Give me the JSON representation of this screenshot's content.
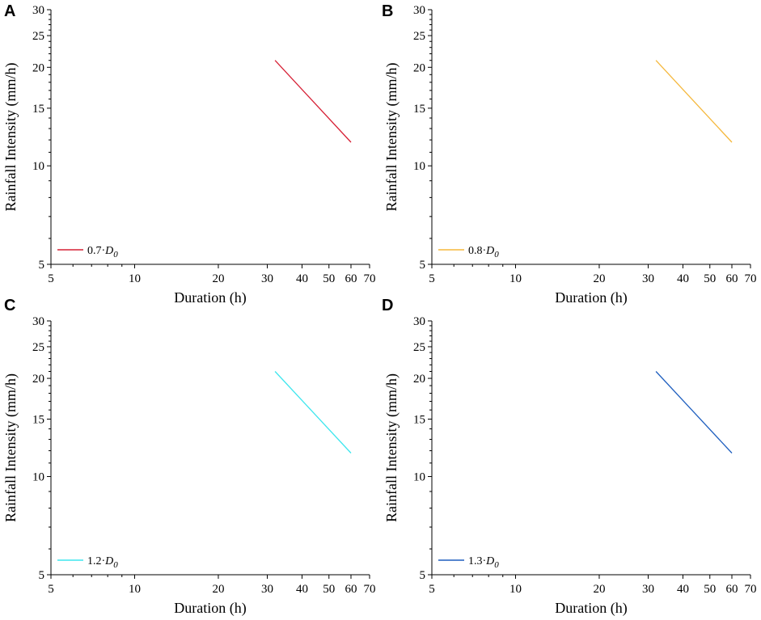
{
  "chart_data": [
    {
      "panel": "A",
      "type": "line",
      "scale": "log-log",
      "xlabel": "Duration (h)",
      "ylabel": "Rainfall Intensity (mm/h)",
      "xlim": [
        5,
        70
      ],
      "ylim": [
        5,
        30
      ],
      "xticks": [
        5,
        10,
        20,
        30,
        40,
        50,
        60,
        70
      ],
      "yticks": [
        5,
        10,
        15,
        20,
        25,
        30
      ],
      "legend_position": "bottom-left",
      "series": [
        {
          "name": "0.7·D",
          "name_base": "0.7·",
          "name_var": "D",
          "name_sub": "0",
          "color": "#d62035",
          "x": [
            32,
            60
          ],
          "y": [
            21,
            11.8
          ]
        }
      ]
    },
    {
      "panel": "B",
      "type": "line",
      "scale": "log-log",
      "xlabel": "Duration (h)",
      "ylabel": "Rainfall Intensity (mm/h)",
      "xlim": [
        5,
        70
      ],
      "ylim": [
        5,
        30
      ],
      "xticks": [
        5,
        10,
        20,
        30,
        40,
        50,
        60,
        70
      ],
      "yticks": [
        5,
        10,
        15,
        20,
        25,
        30
      ],
      "legend_position": "bottom-left",
      "series": [
        {
          "name": "0.8·D",
          "name_base": "0.8·",
          "name_var": "D",
          "name_sub": "0",
          "color": "#f5b83d",
          "x": [
            32,
            60
          ],
          "y": [
            21,
            11.8
          ]
        }
      ]
    },
    {
      "panel": "C",
      "type": "line",
      "scale": "log-log",
      "xlabel": "Duration (h)",
      "ylabel": "Rainfall Intensity (mm/h)",
      "xlim": [
        5,
        70
      ],
      "ylim": [
        5,
        30
      ],
      "xticks": [
        5,
        10,
        20,
        30,
        40,
        50,
        60,
        70
      ],
      "yticks": [
        5,
        10,
        15,
        20,
        25,
        30
      ],
      "legend_position": "bottom-left",
      "series": [
        {
          "name": "1.2·D",
          "name_base": "1.2·",
          "name_var": "D",
          "name_sub": "0",
          "color": "#3ee6ee",
          "x": [
            32,
            60
          ],
          "y": [
            21,
            11.8
          ]
        }
      ]
    },
    {
      "panel": "D",
      "type": "line",
      "scale": "log-log",
      "xlabel": "Duration (h)",
      "ylabel": "Rainfall Intensity (mm/h)",
      "xlim": [
        5,
        70
      ],
      "ylim": [
        5,
        30
      ],
      "xticks": [
        5,
        10,
        20,
        30,
        40,
        50,
        60,
        70
      ],
      "yticks": [
        5,
        10,
        15,
        20,
        25,
        30
      ],
      "legend_position": "bottom-left",
      "series": [
        {
          "name": "1.3·D",
          "name_base": "1.3·",
          "name_var": "D",
          "name_sub": "0",
          "color": "#1f5fbf",
          "x": [
            32,
            60
          ],
          "y": [
            21,
            11.8
          ]
        }
      ]
    }
  ]
}
